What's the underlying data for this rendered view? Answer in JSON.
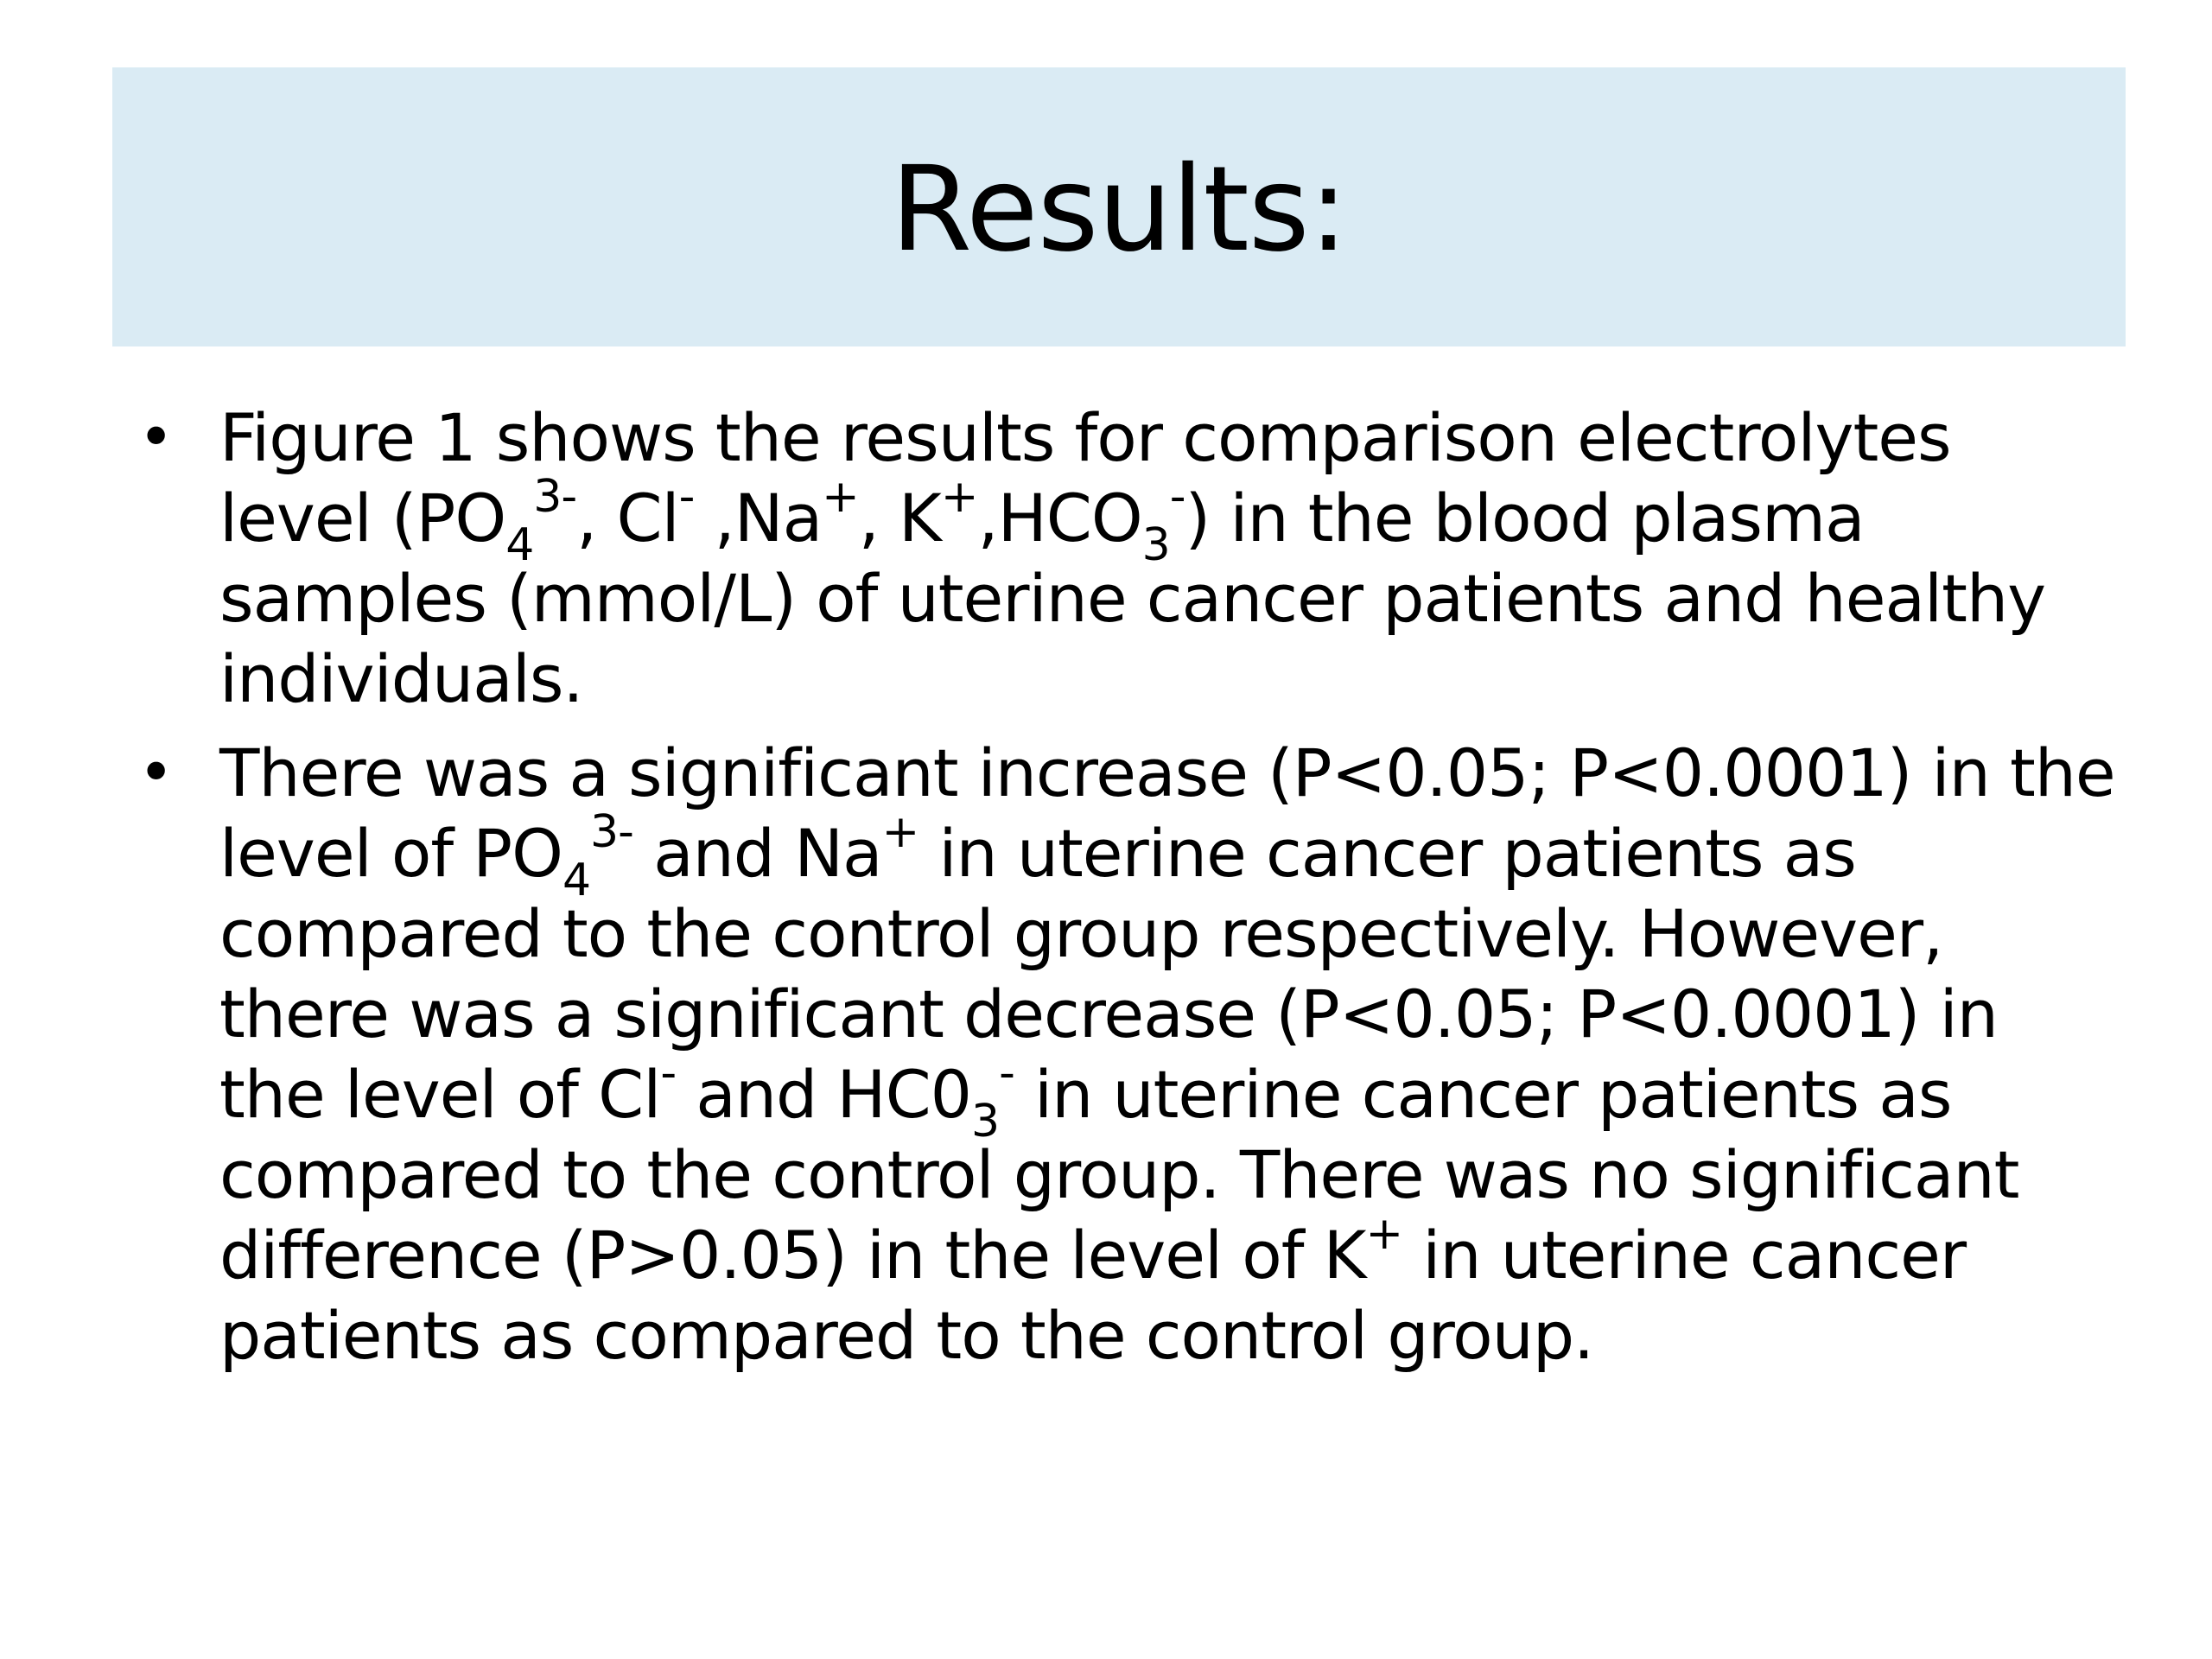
{
  "slide": {
    "title": "Results:",
    "bullet_char": "•",
    "bullets": [
      {
        "segments": [
          {
            "t": "Figure 1 shows the results for comparison electrolytes level (PO"
          },
          {
            "t": "4",
            "sub": true
          },
          {
            "t": "3-",
            "sup": true
          },
          {
            "t": ", Cl"
          },
          {
            "t": "-",
            "sup": true
          },
          {
            "t": " ,Na"
          },
          {
            "t": "+",
            "sup": true
          },
          {
            "t": ", K"
          },
          {
            "t": "+",
            "sup": true
          },
          {
            "t": ",HCO"
          },
          {
            "t": "3",
            "sub": true
          },
          {
            "t": "-",
            "sup": true
          },
          {
            "t": ") in the blood plasma samples (mmol/L) of uterine cancer patients and healthy individuals."
          }
        ]
      },
      {
        "segments": [
          {
            "t": "There was a significant increase (P<0.05; P<0.0001) in the level of PO"
          },
          {
            "t": "4",
            "sub": true
          },
          {
            "t": "3-",
            "sup": true
          },
          {
            "t": " and Na"
          },
          {
            "t": "+",
            "sup": true
          },
          {
            "t": " in uterine cancer patients as compared to the control group respectively. However, there was a significant decrease (P<0.05; P<0.0001) in the level of Cl"
          },
          {
            "t": "-",
            "sup": true
          },
          {
            "t": " and HC0"
          },
          {
            "t": "3",
            "sub": true
          },
          {
            "t": "-",
            "sup": true
          },
          {
            "t": " in uterine cancer patients as compared to the control group. There was no significant difference (P>0.05) in the level of K"
          },
          {
            "t": "+",
            "sup": true
          },
          {
            "t": " in uterine cancer patients as compared to the control group."
          }
        ]
      }
    ]
  },
  "colors": {
    "title_band": "#daebf4",
    "text": "#000000",
    "background": "#ffffff"
  }
}
